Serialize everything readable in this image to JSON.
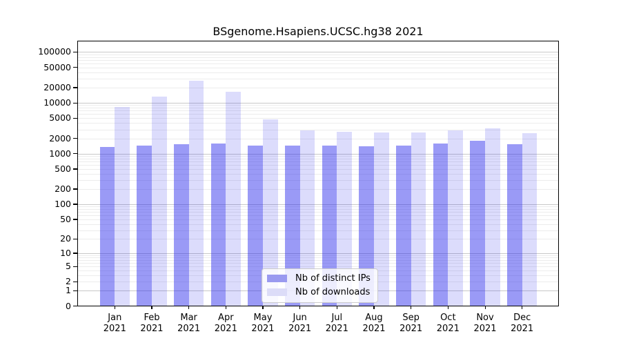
{
  "figure": {
    "title": "BSgenome.Hsapiens.UCSC.hg38 2021"
  },
  "chart_data": {
    "type": "bar",
    "title": "BSgenome.Hsapiens.UCSC.hg38 2021",
    "categories": [
      "Jan 2021",
      "Feb 2021",
      "Mar 2021",
      "Apr 2021",
      "May 2021",
      "Jun 2021",
      "Jul 2021",
      "Aug 2021",
      "Sep 2021",
      "Oct 2021",
      "Nov 2021",
      "Dec 2021"
    ],
    "series": [
      {
        "name": "Nb of distinct IPs",
        "color": "#9a9af0",
        "fill": "rgba(40,40,235,0.47)",
        "values": [
          1350,
          1430,
          1530,
          1600,
          1430,
          1440,
          1460,
          1410,
          1430,
          1580,
          1780,
          1550
        ]
      },
      {
        "name": "Nb of downloads",
        "color": "#dcdcf8",
        "fill": "rgba(40,40,235,0.16)",
        "values": [
          8400,
          13300,
          27300,
          16500,
          4690,
          2880,
          2700,
          2590,
          2620,
          2900,
          3200,
          2550
        ]
      }
    ],
    "xlabel": "",
    "ylabel": "",
    "yscale": "log1p",
    "yticks": [
      0,
      1,
      2,
      5,
      10,
      20,
      50,
      100,
      200,
      500,
      1000,
      2000,
      5000,
      10000,
      20000,
      50000,
      100000
    ],
    "ylim": [
      0,
      167000
    ],
    "grid": "on",
    "legend_position": "lower center",
    "colors": {
      "major_grid": "#c8c8c8",
      "minor_grid": "#ececec",
      "axis": "#000000",
      "background": "#ffffff"
    }
  }
}
